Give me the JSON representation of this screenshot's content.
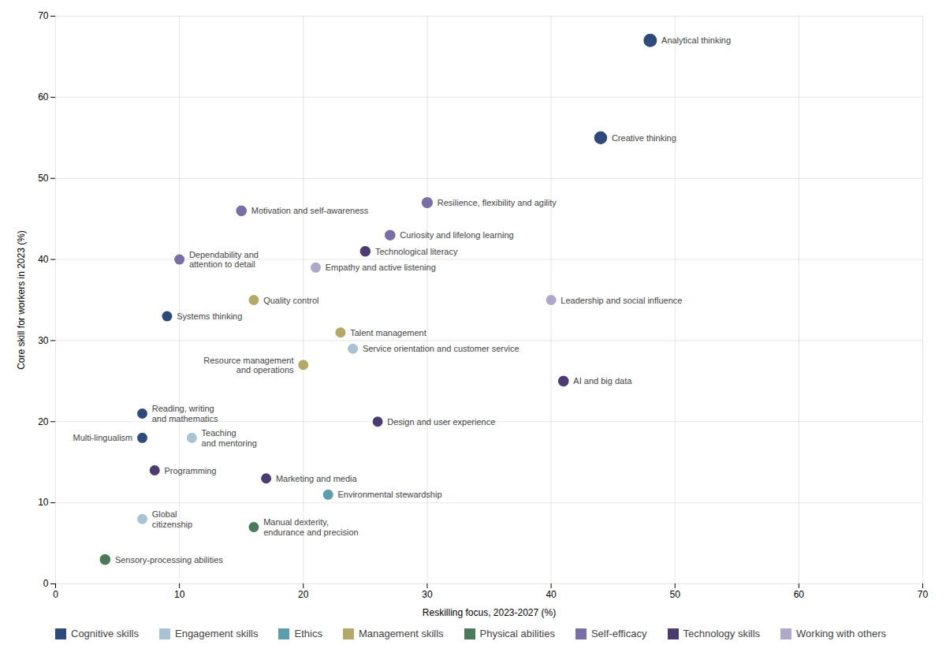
{
  "chart_data": {
    "type": "scatter",
    "xlabel": "Reskilling focus, 2023-2027 (%)",
    "ylabel": "Core skill for workers in 2023 (%)",
    "xlim": [
      0,
      70
    ],
    "ylim": [
      0,
      70
    ],
    "xticks": [
      0,
      10,
      20,
      30,
      40,
      50,
      60,
      70
    ],
    "yticks": [
      0,
      10,
      20,
      30,
      40,
      50,
      60,
      70
    ],
    "grid": true,
    "legend": "bottom",
    "series": [
      {
        "name": "Cognitive skills",
        "color": "#2d4a7a",
        "labels": [
          "Analytical thinking",
          "Creative thinking",
          "Systems thinking",
          "Reading, writing\nand mathematics",
          "Multi-lingualism"
        ],
        "x": [
          48,
          44,
          9,
          7,
          7
        ],
        "y": [
          67,
          55,
          33,
          21,
          18
        ],
        "sizes": [
          180,
          170,
          110,
          110,
          110
        ]
      },
      {
        "name": "Engagement skills",
        "color": "#a8c4d4",
        "labels": [
          "Service orientation and customer service",
          "Teaching\nand mentoring",
          "Global\ncitizenship"
        ],
        "x": [
          24,
          11,
          7
        ],
        "y": [
          29,
          18,
          8
        ],
        "sizes": [
          110,
          110,
          110
        ]
      },
      {
        "name": "Ethics",
        "color": "#5b9daa",
        "labels": [
          "Environmental stewardship"
        ],
        "x": [
          22
        ],
        "y": [
          11
        ],
        "sizes": [
          110
        ]
      },
      {
        "name": "Management skills",
        "color": "#b5a96a",
        "labels": [
          "Quality control",
          "Talent management",
          "Resource management\nand operations"
        ],
        "x": [
          16,
          23,
          20
        ],
        "y": [
          35,
          31,
          27
        ],
        "sizes": [
          110,
          110,
          110
        ]
      },
      {
        "name": "Physical abilities",
        "color": "#4a7a5a",
        "labels": [
          "Manual dexterity,\nendurance and precision",
          "Sensory-processing abilities"
        ],
        "x": [
          16,
          4
        ],
        "y": [
          7,
          3
        ],
        "sizes": [
          110,
          120
        ]
      },
      {
        "name": "Self-efficacy",
        "color": "#7b6ea6",
        "labels": [
          "Resilience, flexibility and agility",
          "Motivation and self-awareness",
          "Curiosity and lifelong learning",
          "Dependability and\nattention to detail"
        ],
        "x": [
          30,
          15,
          27,
          10
        ],
        "y": [
          47,
          46,
          43,
          40
        ],
        "sizes": [
          130,
          120,
          120,
          110
        ]
      },
      {
        "name": "Technology skills",
        "color": "#4a3c6e",
        "labels": [
          "Technological literacy",
          "AI and big data",
          "Design and user experience",
          "Programming",
          "Marketing and media"
        ],
        "x": [
          25,
          41,
          26,
          8,
          17
        ],
        "y": [
          41,
          25,
          20,
          14,
          13
        ],
        "sizes": [
          120,
          120,
          110,
          110,
          110
        ]
      },
      {
        "name": "Working with others",
        "color": "#b0a8c8",
        "labels": [
          "Empathy and active listening",
          "Leadership and social influence"
        ],
        "x": [
          21,
          40
        ],
        "y": [
          39,
          35
        ],
        "sizes": [
          110,
          110
        ]
      }
    ]
  }
}
